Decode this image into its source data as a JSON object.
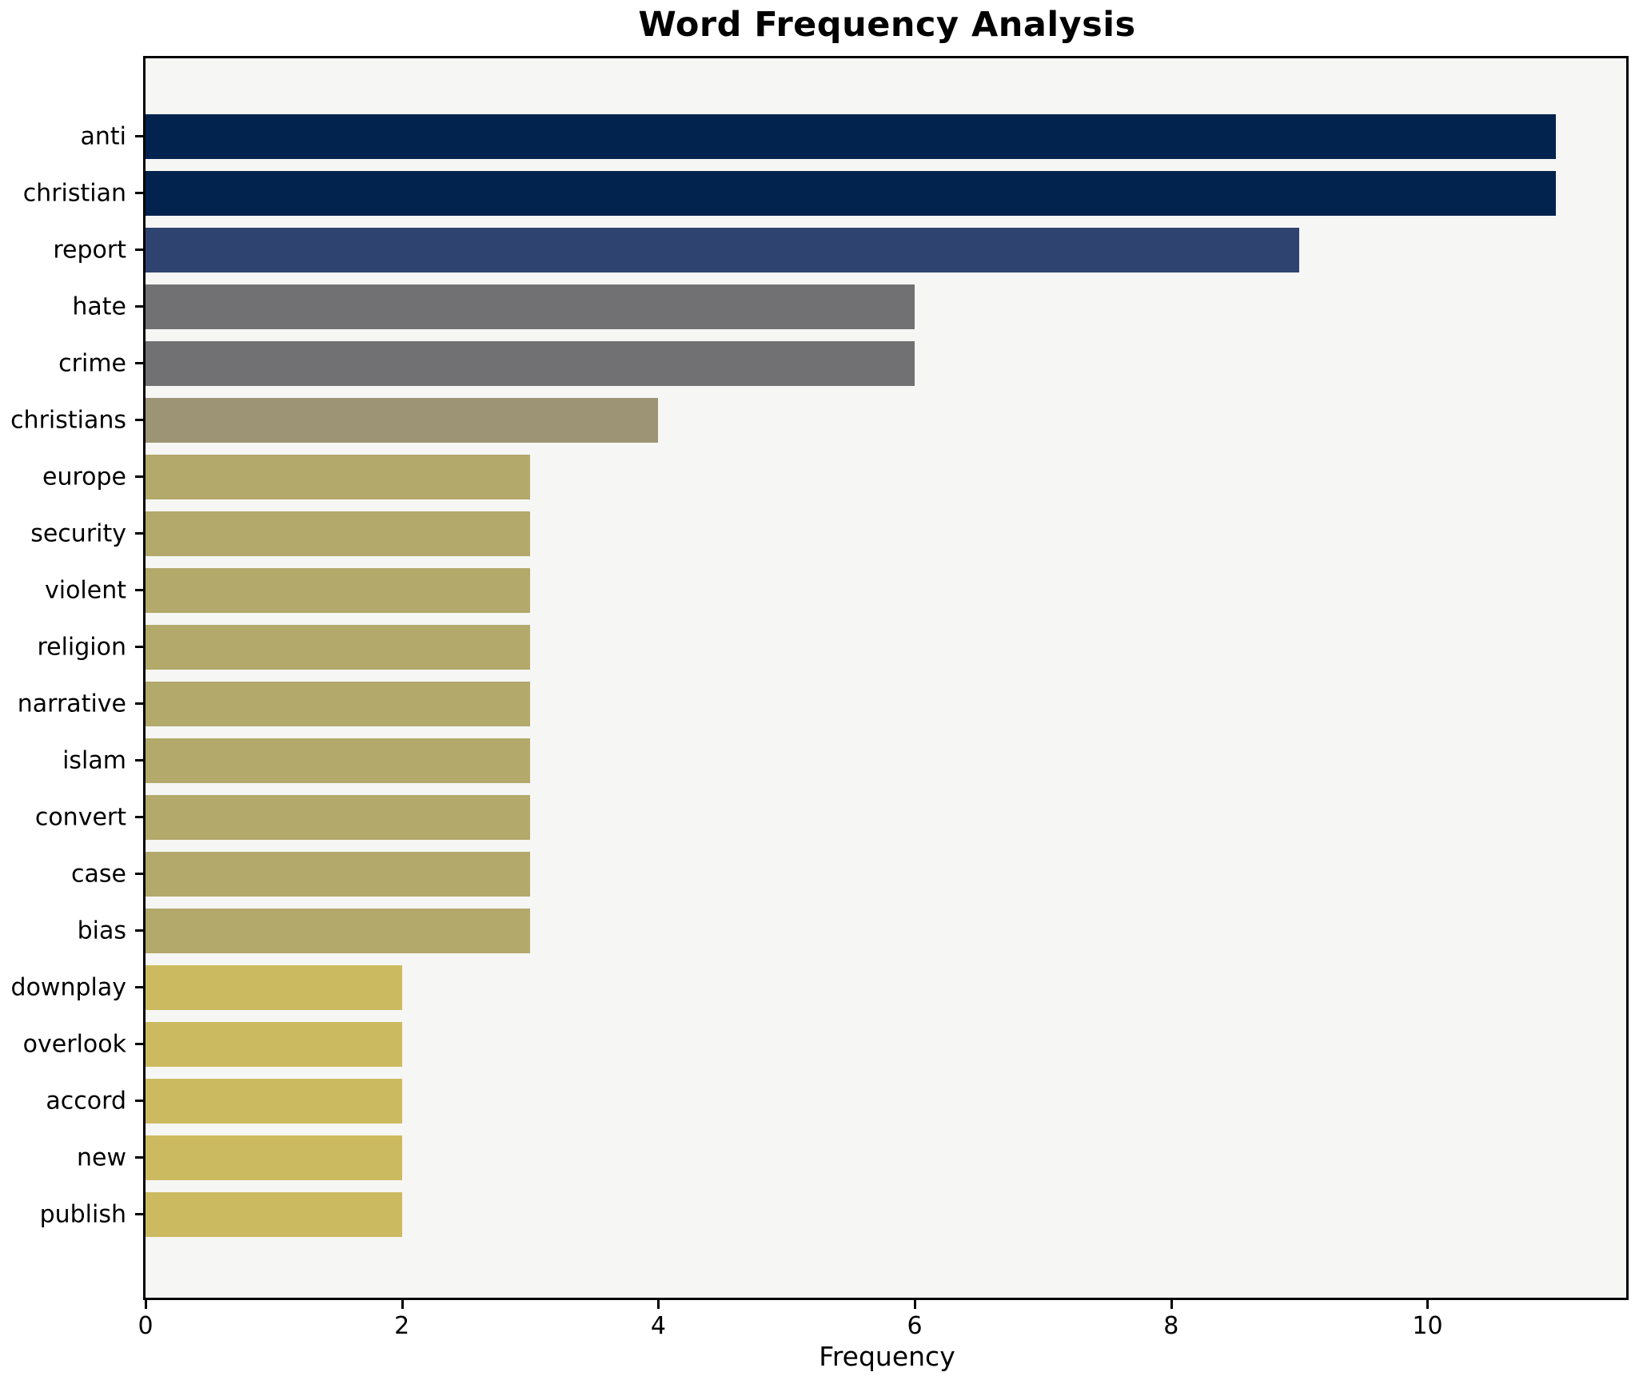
{
  "title": "Word Frequency Analysis",
  "chart_data": {
    "type": "bar",
    "orientation": "horizontal",
    "title": "Word Frequency Analysis",
    "xlabel": "Frequency",
    "ylabel": "",
    "categories": [
      "anti",
      "christian",
      "report",
      "hate",
      "crime",
      "christians",
      "europe",
      "security",
      "violent",
      "religion",
      "narrative",
      "islam",
      "convert",
      "case",
      "bias",
      "downplay",
      "overlook",
      "accord",
      "new",
      "publish"
    ],
    "values": [
      11,
      11,
      9,
      6,
      6,
      4,
      3,
      3,
      3,
      3,
      3,
      3,
      3,
      3,
      3,
      2,
      2,
      2,
      2,
      2
    ],
    "bar_colors": [
      "#02234e",
      "#02234e",
      "#2f4370",
      "#717173",
      "#717173",
      "#9c9474",
      "#b2a96a",
      "#b2a96a",
      "#b2a96a",
      "#b2a96a",
      "#b2a96a",
      "#b2a96a",
      "#b2a96a",
      "#b2a96a",
      "#b2a96a",
      "#ccba60",
      "#ccba60",
      "#ccba60",
      "#ccba60",
      "#ccba60"
    ],
    "xlim": [
      0,
      11.55
    ],
    "xticks": [
      0,
      2,
      4,
      6,
      8,
      10
    ],
    "grid": false,
    "legend": "none",
    "plot_background": "#f6f6f5",
    "figure_background": "#ffffff",
    "spine_color": "#000000"
  }
}
